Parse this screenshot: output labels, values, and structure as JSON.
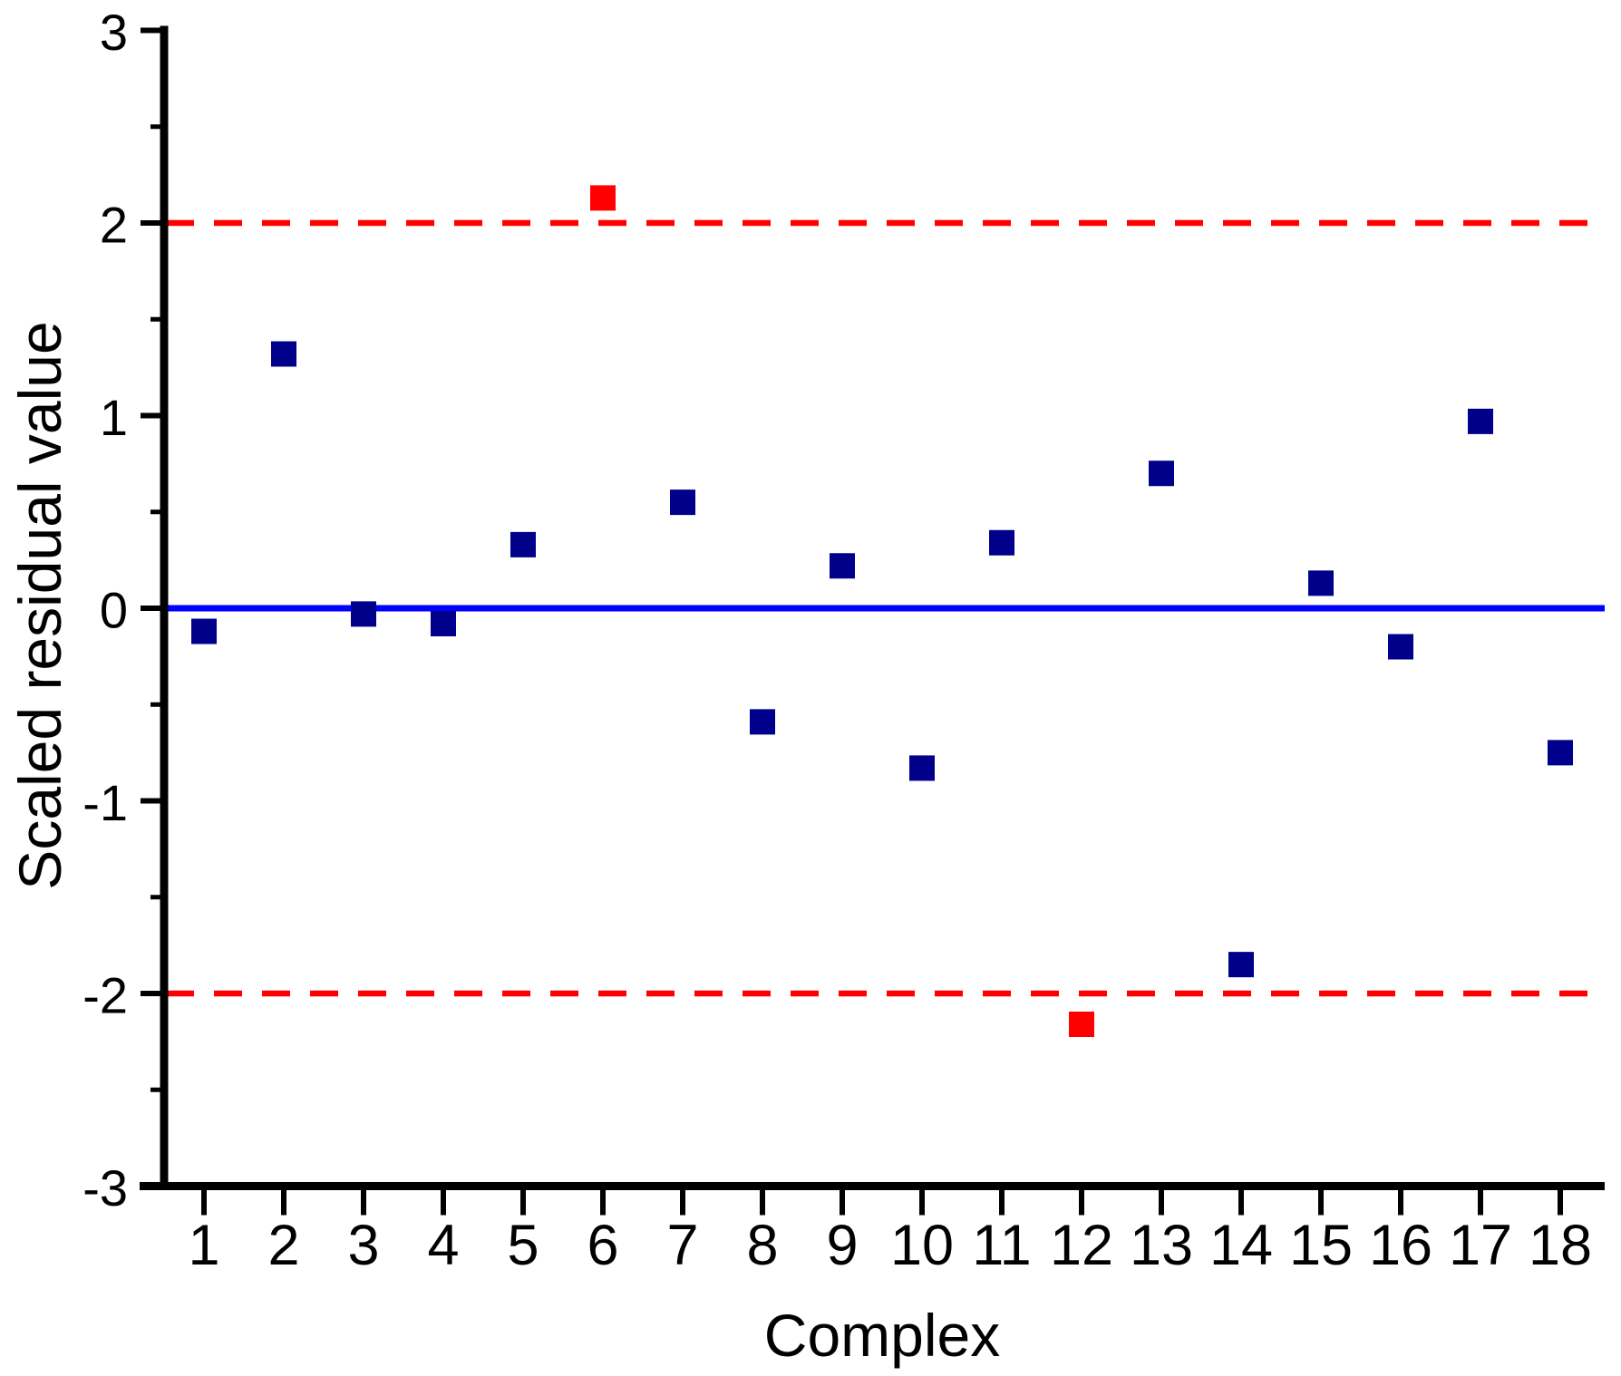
{
  "chart_data": {
    "type": "scatter",
    "title": "",
    "xlabel": "Complex",
    "ylabel": "Scaled residual value",
    "x": [
      1,
      2,
      3,
      4,
      5,
      6,
      7,
      8,
      9,
      10,
      11,
      12,
      13,
      14,
      15,
      16,
      17,
      18
    ],
    "y": [
      -0.12,
      1.32,
      -0.03,
      -0.08,
      0.33,
      2.13,
      0.55,
      -0.59,
      0.22,
      -0.83,
      0.34,
      -2.16,
      0.7,
      -1.85,
      0.13,
      -0.2,
      0.97,
      -0.75
    ],
    "outlier_x": [
      6,
      12
    ],
    "x_tick_labels": [
      "1",
      "2",
      "3",
      "4",
      "5",
      "6",
      "7",
      "8",
      "9",
      "10",
      "11",
      "12",
      "13",
      "14",
      "15",
      "16",
      "17",
      "18"
    ],
    "y_tick_labels": [
      "-3",
      "-2",
      "-1",
      "0",
      "1",
      "2",
      "3"
    ],
    "y_tick_values": [
      -3,
      -2,
      -1,
      0,
      1,
      2,
      3
    ],
    "y_minor_tick_values": [
      -2.5,
      -1.5,
      -0.5,
      0.5,
      1.5,
      2.5
    ],
    "ylim": [
      -3,
      3
    ],
    "grid": false,
    "legend_position": "none",
    "marker_shape": "square",
    "reference_lines": [
      {
        "name": "zero-line",
        "y": 0,
        "style": "solid",
        "color": "#0000ff"
      },
      {
        "name": "upper-limit-line",
        "y": 2,
        "style": "dashed",
        "color": "#ff0000"
      },
      {
        "name": "lower-limit-line",
        "y": -2,
        "style": "dashed",
        "color": "#ff0000"
      }
    ],
    "colors": {
      "marker_normal": "#00008b",
      "marker_outlier": "#ff0000",
      "zero_line": "#0000ff",
      "limit_line": "#ff0000",
      "axis": "#000000",
      "text": "#000000",
      "background": "#ffffff"
    }
  }
}
